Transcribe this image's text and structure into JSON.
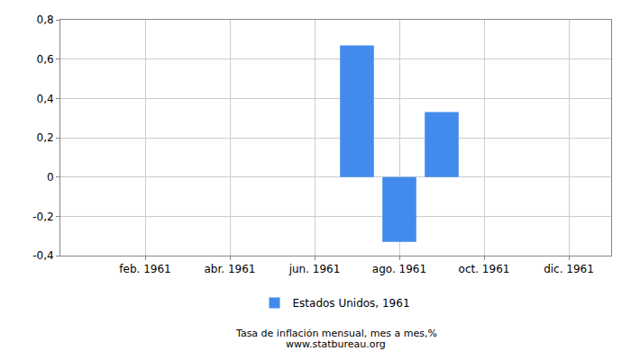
{
  "chart_data": {
    "type": "bar",
    "categories": [
      null,
      "feb. 1961",
      null,
      "abr. 1961",
      null,
      "jun. 1961",
      null,
      "ago. 1961",
      null,
      "oct. 1961",
      null,
      "dic. 1961"
    ],
    "series": [
      {
        "name": "Estados Unidos, 1961",
        "color": "#428bed",
        "values": [
          0,
          0,
          0,
          0,
          0,
          0,
          0.67,
          -0.33,
          0.33,
          0,
          0,
          0
        ]
      }
    ],
    "ylim": [
      -0.4,
      0.8
    ],
    "yticks": [
      {
        "value": -0.4,
        "label": "-0,4"
      },
      {
        "value": -0.2,
        "label": "-0,2"
      },
      0,
      {
        "value": 0.2,
        "label": "0,2"
      },
      {
        "value": 0.4,
        "label": "0,4"
      },
      {
        "value": 0.6,
        "label": "0,6"
      },
      {
        "value": 0.8,
        "label": "0,8"
      }
    ],
    "grid": true,
    "legend": "bottom",
    "annotations": [
      "Tasa de inflación mensual, mes a mes,%",
      "www.statbureau.org"
    ]
  }
}
